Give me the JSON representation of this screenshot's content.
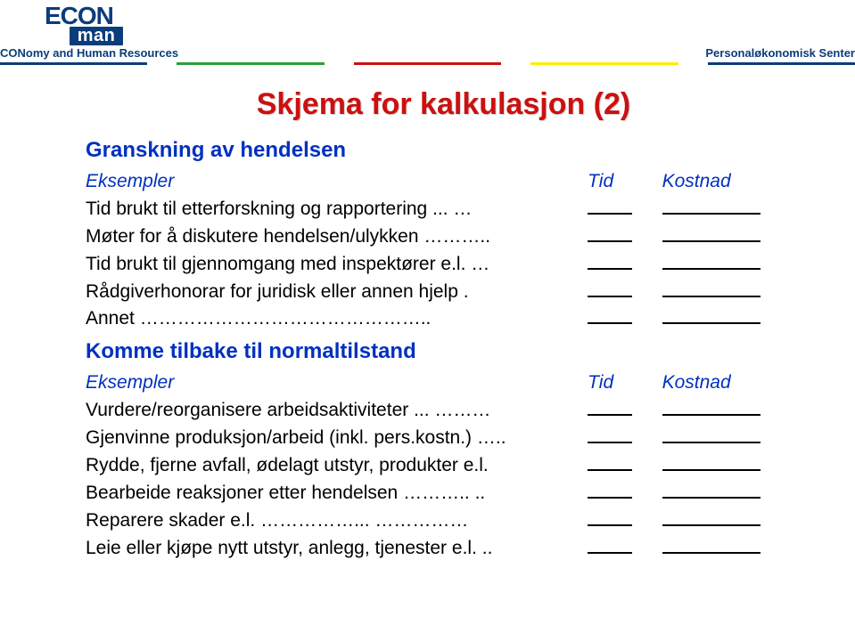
{
  "brand": {
    "econ": "ECON",
    "man": "man",
    "subline_left": "CONomy and Human Resources",
    "subline_right": "Personaløkonomisk Senter"
  },
  "divider_colors": [
    "#0a3d7a",
    "#ffffff",
    "#2aa037",
    "#ffffff",
    "#cc1010",
    "#ffffff",
    "#ffee00",
    "#ffffff",
    "#0a3d7a"
  ],
  "divider_widths": [
    2,
    0.4,
    2,
    0.4,
    2,
    0.4,
    2,
    0.4,
    2
  ],
  "title": "Skjema for kalkulasjon (2)",
  "section1": {
    "heading": "Granskning av hendelsen",
    "examples_label": "Eksempler",
    "time_label": "Tid",
    "cost_label": "Kostnad",
    "rows": [
      "Tid brukt til etterforskning og rapportering ... …",
      "Møter for å diskutere hendelsen/ulykken ………..",
      "Tid brukt til gjennomgang med inspektører e.l. …",
      "Rådgiverhonorar for juridisk eller annen hjelp .",
      "Annet ……………………………………….."
    ]
  },
  "section2": {
    "heading": "Komme tilbake til normaltilstand",
    "examples_label": "Eksempler",
    "time_label": "Tid",
    "cost_label": "Kostnad",
    "rows": [
      "Vurdere/reorganisere arbeidsaktiviteter ... ………",
      "Gjenvinne produksjon/arbeid (inkl. pers.kostn.) …..",
      "Rydde, fjerne avfall, ødelagt utstyr, produkter e.l.",
      "Bearbeide reaksjoner etter hendelsen ……….. ..",
      "Reparere skader e.l. ……………... ……………",
      "Leie eller kjøpe nytt utstyr, anlegg, tjenester e.l. .."
    ]
  }
}
